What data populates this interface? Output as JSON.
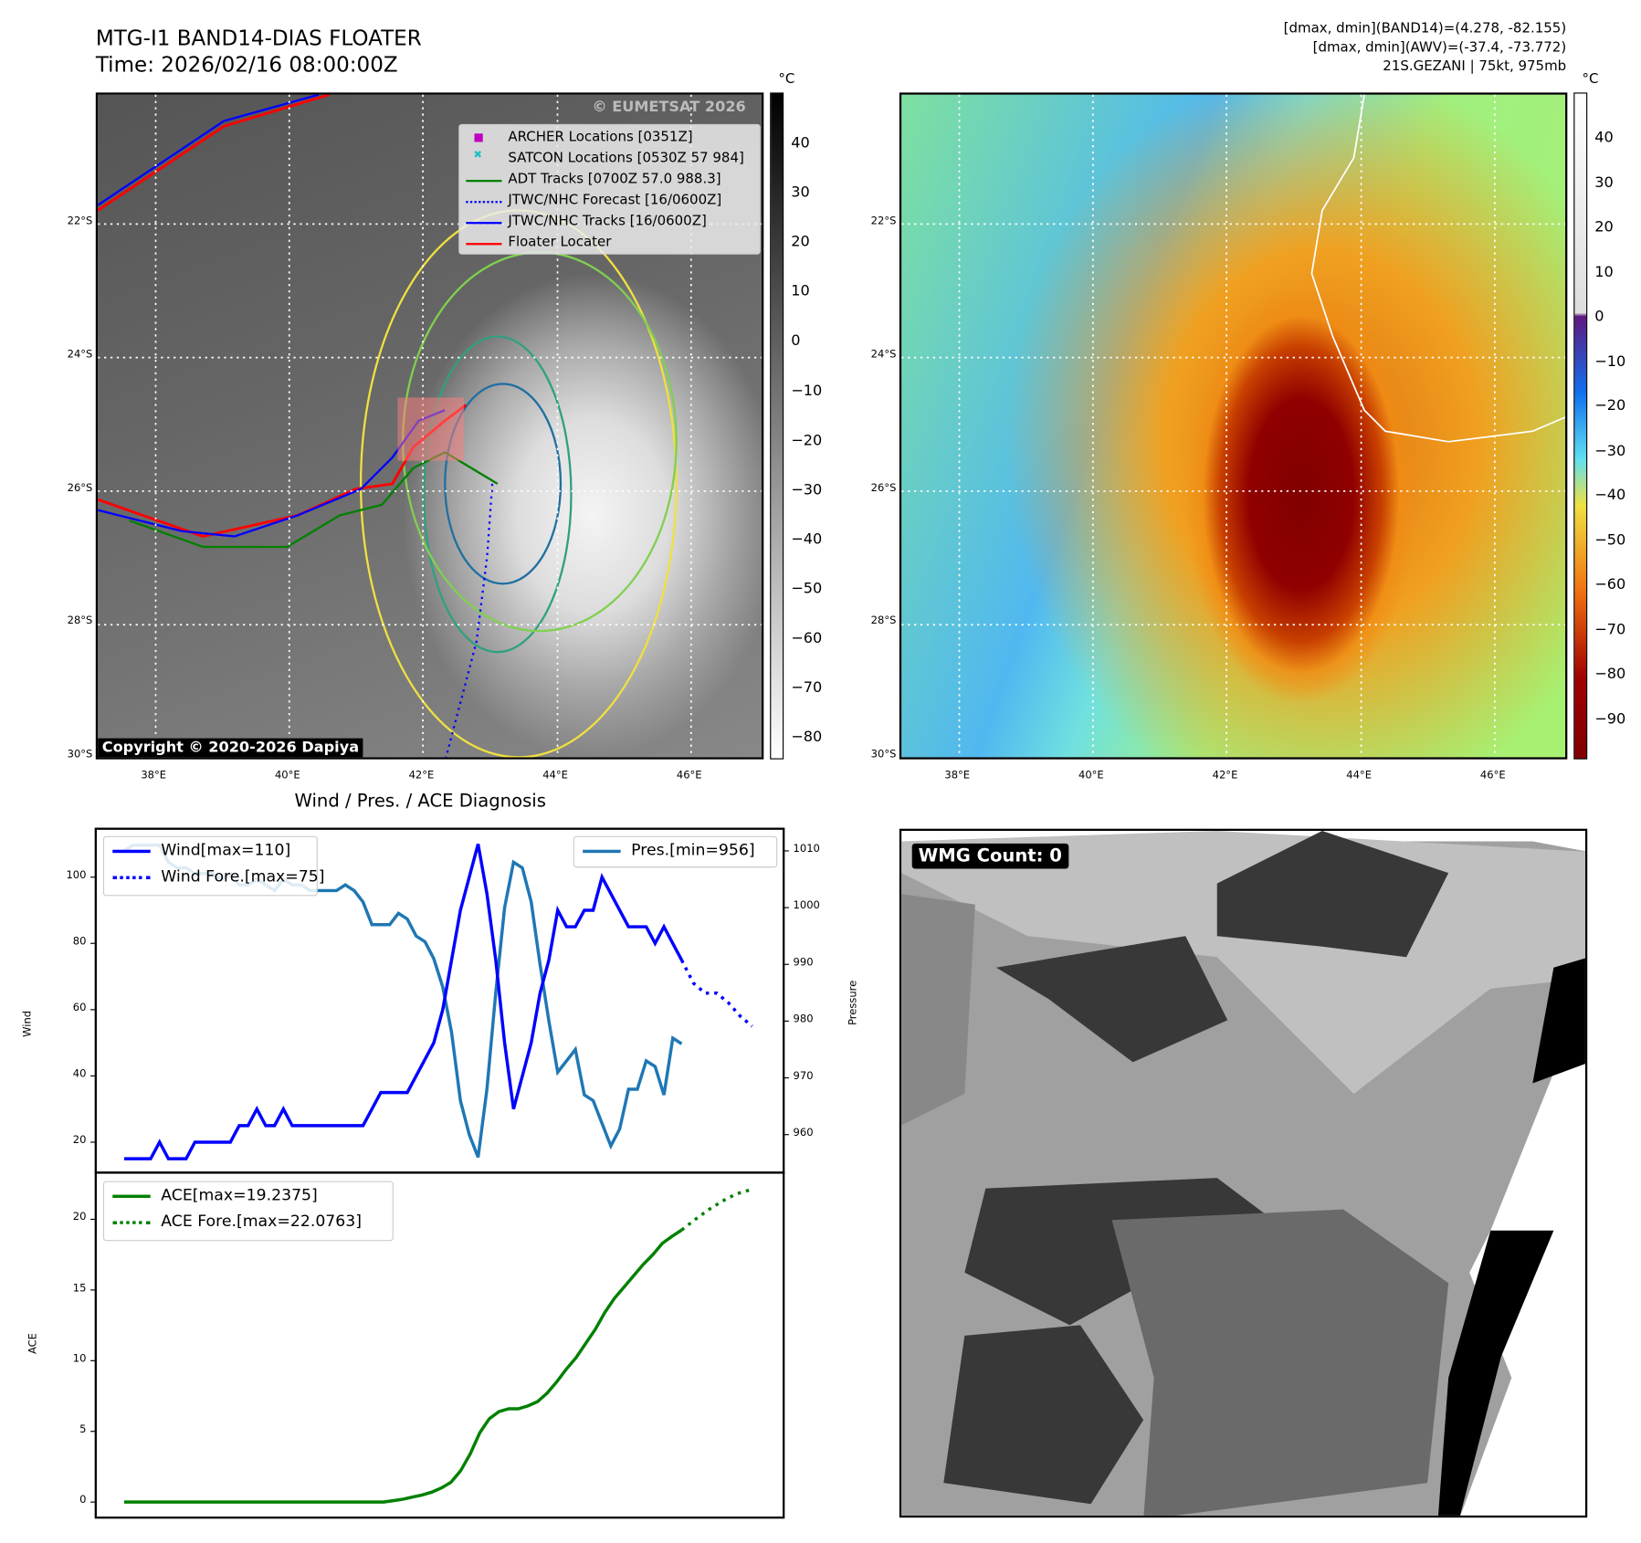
{
  "header": {
    "title": "MTG-I1 BAND14-DIAS FLOATER",
    "time": "Time: 2026/02/16 08:00:00Z",
    "info1": "[dmax, dmin](BAND14)=(4.278, -82.155)",
    "info2": "[dmax, dmin](AWV)=(-37.4, -73.772)",
    "info3": "21S.GEZANI | 75kt, 975mb"
  },
  "maps": {
    "lon_ticks": [
      "38°E",
      "40°E",
      "42°E",
      "44°E",
      "46°E"
    ],
    "lat_ticks": [
      "22°S",
      "24°S",
      "26°S",
      "28°S",
      "30°S"
    ],
    "copyright": "Copyright © 2020-2026 Dapiya",
    "watermark": "© EUMETSAT 2026",
    "unit": "°C",
    "cbar_left_ticks": [
      "40",
      "30",
      "20",
      "10",
      "0",
      "−10",
      "−20",
      "−30",
      "−40",
      "−50",
      "−60",
      "−70",
      "−80"
    ],
    "cbar_right_ticks": [
      "40",
      "30",
      "20",
      "10",
      "0",
      "−10",
      "−20",
      "−30",
      "−40",
      "−50",
      "−60",
      "−70",
      "−80",
      "−90"
    ],
    "legend": [
      "ARCHER Locations [0351Z]",
      "SATCON Locations [0530Z 57 984]",
      "ADT Tracks [0700Z 57.0 988.3]",
      "JTWC/NHC Forecast [16/0600Z]",
      "JTWC/NHC Tracks [16/0600Z]",
      "Floater Locater"
    ],
    "colors": {
      "archer": "#c000c0",
      "satcon": "#20c0c0",
      "adt": "#008000",
      "jtwc": "#0000ff",
      "floater": "#ff0000"
    }
  },
  "wmg": {
    "label": "WMG Count: 0"
  },
  "chart_data": [
    {
      "type": "line",
      "title": "Wind / Pres. / ACE Diagnosis",
      "ylabel": "Wind",
      "ylabel2": "Pressure",
      "ylim": [
        10.8,
        114.6
      ],
      "ylim2": [
        953.3,
        1013.9
      ],
      "yticks": [
        20,
        40,
        60,
        80,
        100
      ],
      "yticks2": [
        960,
        970,
        980,
        990,
        1000,
        1010
      ],
      "legend": [
        "Wind[max=110]",
        "Wind Fore.[max=75]",
        "Pres.[min=956]"
      ],
      "wind": [
        15,
        15,
        15,
        15,
        20,
        15,
        15,
        15,
        20,
        20,
        20,
        20,
        20,
        25,
        25,
        30,
        25,
        25,
        30,
        25,
        25,
        25,
        25,
        25,
        25,
        25,
        25,
        25,
        30,
        35,
        35,
        35,
        35,
        40,
        45,
        50,
        60,
        75,
        90,
        100,
        110,
        95,
        75,
        50,
        30,
        40,
        50,
        65,
        75,
        90,
        85,
        85,
        90,
        90,
        100,
        95,
        90,
        85,
        85,
        85,
        80,
        85,
        80,
        75
      ],
      "wind_forecast": [
        75,
        68,
        65,
        65,
        62,
        58,
        55
      ],
      "pressure": [
        1010,
        1011,
        1011,
        1011,
        1011,
        1008,
        1007,
        1007,
        1006,
        1006,
        1006,
        1005,
        1006,
        1004,
        1004,
        1005,
        1004,
        1003,
        1005,
        1004,
        1004,
        1003,
        1003,
        1003,
        1003,
        1004,
        1003,
        1001,
        997,
        997,
        997,
        999,
        998,
        995,
        994,
        991,
        986,
        978,
        966,
        960,
        956,
        968,
        985,
        1000,
        1008,
        1007,
        1001,
        990,
        980,
        971,
        973,
        975,
        967,
        966,
        962,
        958,
        961,
        968,
        968,
        973,
        972,
        967,
        977,
        976
      ]
    },
    {
      "type": "line",
      "ylabel": "ACE",
      "ylim": [
        -1.1,
        23.3
      ],
      "yticks": [
        0,
        5,
        10,
        15,
        20
      ],
      "legend": [
        "ACE[max=19.2375]",
        "ACE Fore.[max=22.0763]"
      ],
      "ace": [
        0,
        0,
        0,
        0,
        0,
        0,
        0,
        0,
        0,
        0,
        0,
        0,
        0,
        0,
        0,
        0,
        0,
        0,
        0,
        0,
        0,
        0,
        0,
        0,
        0,
        0,
        0,
        0,
        0.1,
        0.2,
        0.35,
        0.5,
        0.7,
        1.0,
        1.4,
        2.2,
        3.4,
        4.9,
        5.9,
        6.4,
        6.6,
        6.6,
        6.8,
        7.1,
        7.7,
        8.5,
        9.4,
        10.2,
        11.2,
        12.2,
        13.4,
        14.4,
        15.2,
        16.0,
        16.8,
        17.5,
        18.3,
        18.8,
        19.2375
      ],
      "ace_forecast": [
        19.24,
        20.0,
        20.7,
        21.3,
        21.8,
        22.08
      ]
    }
  ]
}
